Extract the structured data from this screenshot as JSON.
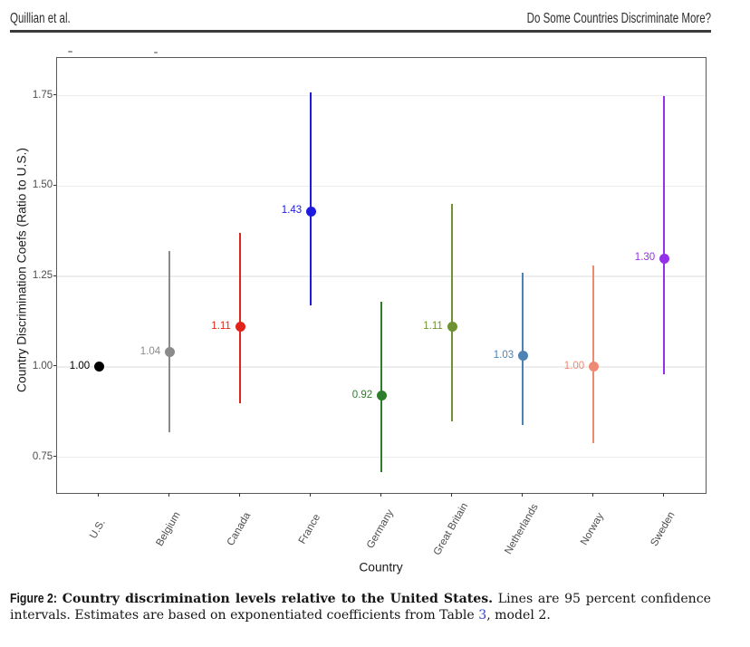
{
  "header": {
    "left": "Quillian et al.",
    "right": "Do Some Countries Discriminate More?"
  },
  "chart_data": {
    "type": "scatter",
    "subtype": "pointrange-ci",
    "title": "",
    "xlabel": "Country",
    "ylabel": "Country Discrimination Coefs (Ratio to U.S.)",
    "ylim": [
      0.648,
      1.853
    ],
    "grid": "major-horizontal",
    "legend": "none",
    "y_ticks": [
      {
        "value": 0.75,
        "label": "0.75"
      },
      {
        "value": 1.0,
        "label": "1.00"
      },
      {
        "value": 1.25,
        "label": "1.25"
      },
      {
        "value": 1.5,
        "label": "1.50"
      },
      {
        "value": 1.75,
        "label": "1.75"
      }
    ],
    "categories": [
      "U.S.",
      "Belgium",
      "Canada",
      "France",
      "Germany",
      "Great Britain",
      "Netherlands",
      "Norway",
      "Sweden"
    ],
    "series": [
      {
        "country": "U.S.",
        "estimate": 1.0,
        "label": "1.00",
        "ci_low": null,
        "ci_high": null,
        "color": "#000000"
      },
      {
        "country": "Belgium",
        "estimate": 1.04,
        "label": "1.04",
        "ci_low": 0.82,
        "ci_high": 1.32,
        "color": "#8a8a8a"
      },
      {
        "country": "Canada",
        "estimate": 1.11,
        "label": "1.11",
        "ci_low": 0.9,
        "ci_high": 1.37,
        "color": "#e0241c"
      },
      {
        "country": "France",
        "estimate": 1.43,
        "label": "1.43",
        "ci_low": 1.17,
        "ci_high": 1.76,
        "color": "#1e1ae0"
      },
      {
        "country": "Germany",
        "estimate": 0.92,
        "label": "0.92",
        "ci_low": 0.71,
        "ci_high": 1.18,
        "color": "#2e7d2a"
      },
      {
        "country": "Great Britain",
        "estimate": 1.11,
        "label": "1.11",
        "ci_low": 0.85,
        "ci_high": 1.45,
        "color": "#6e9232"
      },
      {
        "country": "Netherlands",
        "estimate": 1.03,
        "label": "1.03",
        "ci_low": 0.84,
        "ci_high": 1.26,
        "color": "#4d82b4"
      },
      {
        "country": "Norway",
        "estimate": 1.0,
        "label": "1.00",
        "ci_low": 0.79,
        "ci_high": 1.28,
        "color": "#ee8a74"
      },
      {
        "country": "Sweden",
        "estimate": 1.3,
        "label": "1.30",
        "ci_low": 0.98,
        "ci_high": 1.75,
        "color": "#9531ea"
      }
    ]
  },
  "caption": {
    "figure_label": "Figure 2:",
    "bold_text": "Country discrimination levels relative to the United States.",
    "line1_text": "Lines are 95 percent confidence",
    "line2_pre": "intervals. Estimates are based on exponentiated coefficients from Table",
    "link_text": "3",
    "line2_post": ", model 2."
  }
}
